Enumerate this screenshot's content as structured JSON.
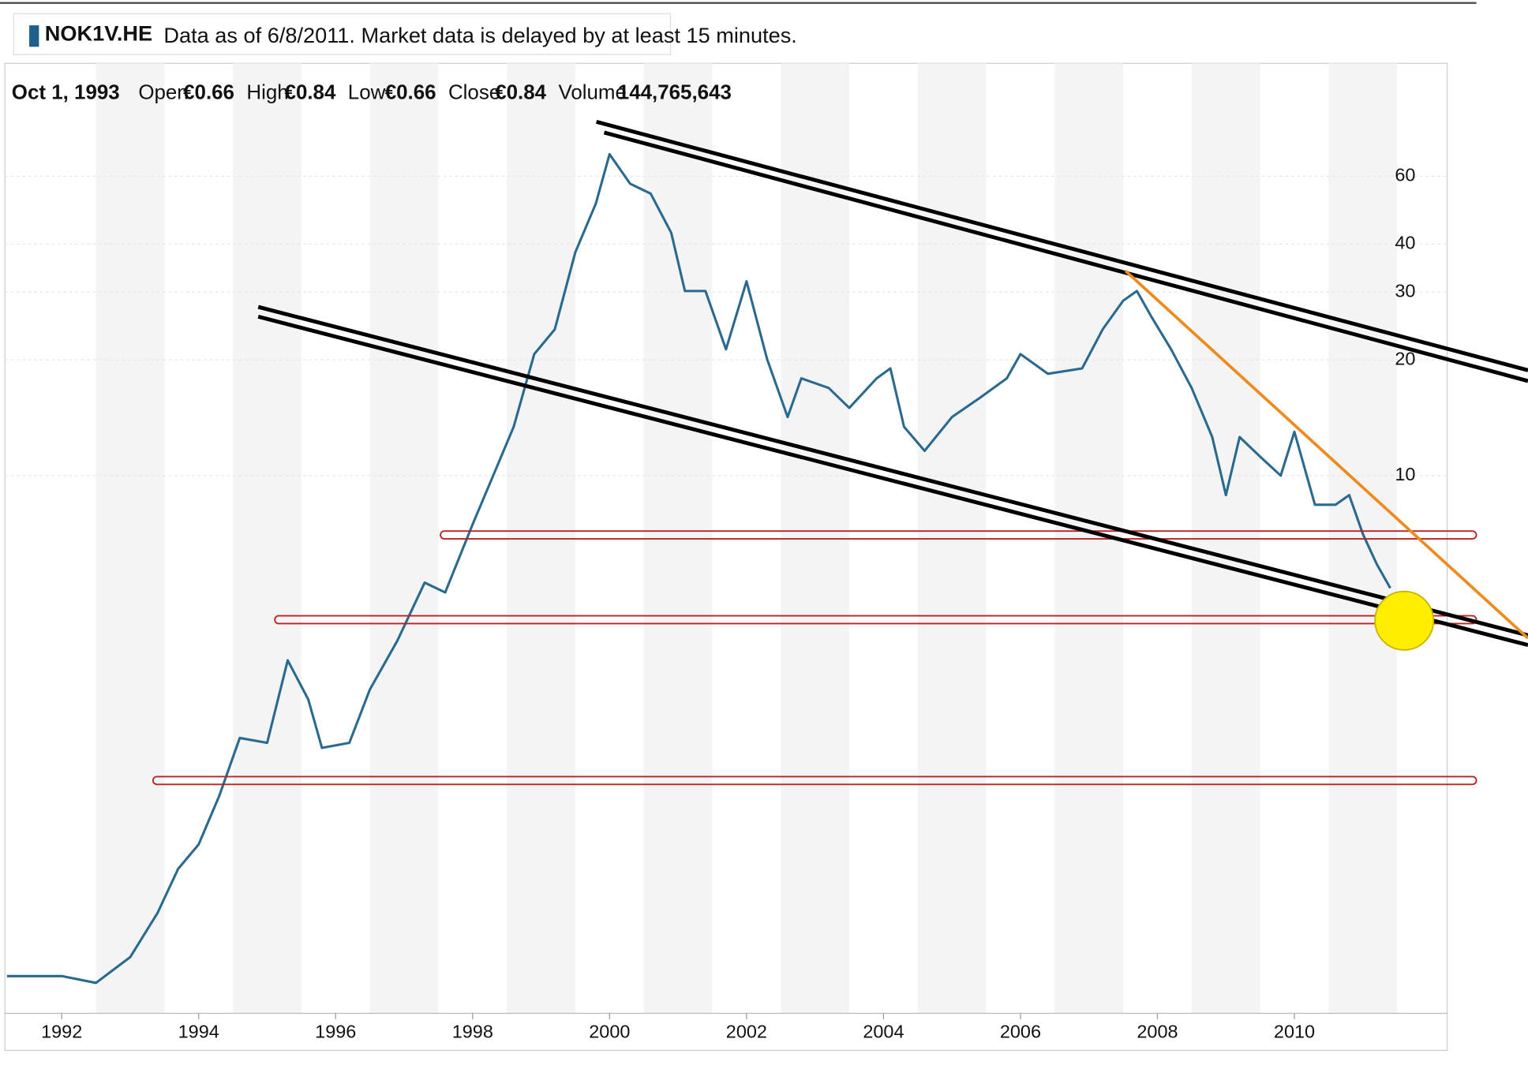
{
  "header": {
    "symbol": "NOK1V.HE",
    "note": "Data as of 6/8/2011. Market data is delayed by at least 15 minutes."
  },
  "info": {
    "date": "Oct 1, 1993",
    "open_label": "Open",
    "open": "€0.66",
    "high_label": "High",
    "high": "€0.84",
    "low_label": "Low",
    "low": "€0.66",
    "close_label": "Close",
    "close": "€0.84",
    "volume_label": "Volume",
    "volume": "144,765,643"
  },
  "chart_data": {
    "type": "line",
    "color": "#2b6a8f",
    "log_y": true,
    "x": [
      1991.2,
      1992.0,
      1992.5,
      1993.0,
      1993.4,
      1993.7,
      1994.0,
      1994.3,
      1994.6,
      1995.0,
      1995.3,
      1995.6,
      1995.8,
      1996.2,
      1996.5,
      1996.9,
      1997.3,
      1997.6,
      1998.0,
      1998.3,
      1998.6,
      1998.9,
      1999.2,
      1999.5,
      1999.8,
      2000.0,
      2000.3,
      2000.6,
      2000.9,
      2001.1,
      2001.4,
      2001.7,
      2002.0,
      2002.3,
      2002.6,
      2002.8,
      2003.2,
      2003.5,
      2003.9,
      2004.1,
      2004.3,
      2004.6,
      2005.0,
      2005.4,
      2005.8,
      2006.0,
      2006.4,
      2006.9,
      2007.2,
      2007.5,
      2007.7,
      2007.9,
      2008.2,
      2008.5,
      2008.8,
      2009.0,
      2009.2,
      2009.5,
      2009.8,
      2010.0,
      2010.3,
      2010.6,
      2010.8,
      2011.0,
      2011.2,
      2011.4
    ],
    "values": [
      0.5,
      0.5,
      0.48,
      0.56,
      0.73,
      0.95,
      1.1,
      1.47,
      2.08,
      2.02,
      3.31,
      2.62,
      1.96,
      2.02,
      2.78,
      3.72,
      5.27,
      4.97,
      7.47,
      10,
      13.4,
      20.7,
      24,
      38.1,
      51,
      68.5,
      57.4,
      54.1,
      42.8,
      30.2,
      30.2,
      21.3,
      32,
      20.1,
      14.2,
      17.9,
      16.9,
      15,
      17.9,
      19,
      13.4,
      11.6,
      14.2,
      15.9,
      17.9,
      20.7,
      18.4,
      19,
      24,
      28.5,
      30.2,
      26.1,
      21.3,
      16.9,
      12.6,
      8.9,
      12.6,
      11.2,
      10,
      13,
      8.4,
      8.4,
      8.9,
      7.05,
      5.9,
      5.1
    ],
    "xlim": [
      1991.17,
      2012.23
    ],
    "xticks": [
      1992,
      1994,
      1996,
      1998,
      2000,
      2002,
      2004,
      2006,
      2008,
      2010
    ],
    "ylim": [
      0.4,
      118
    ],
    "yticks": [
      10,
      20,
      30,
      40,
      60
    ]
  }
}
